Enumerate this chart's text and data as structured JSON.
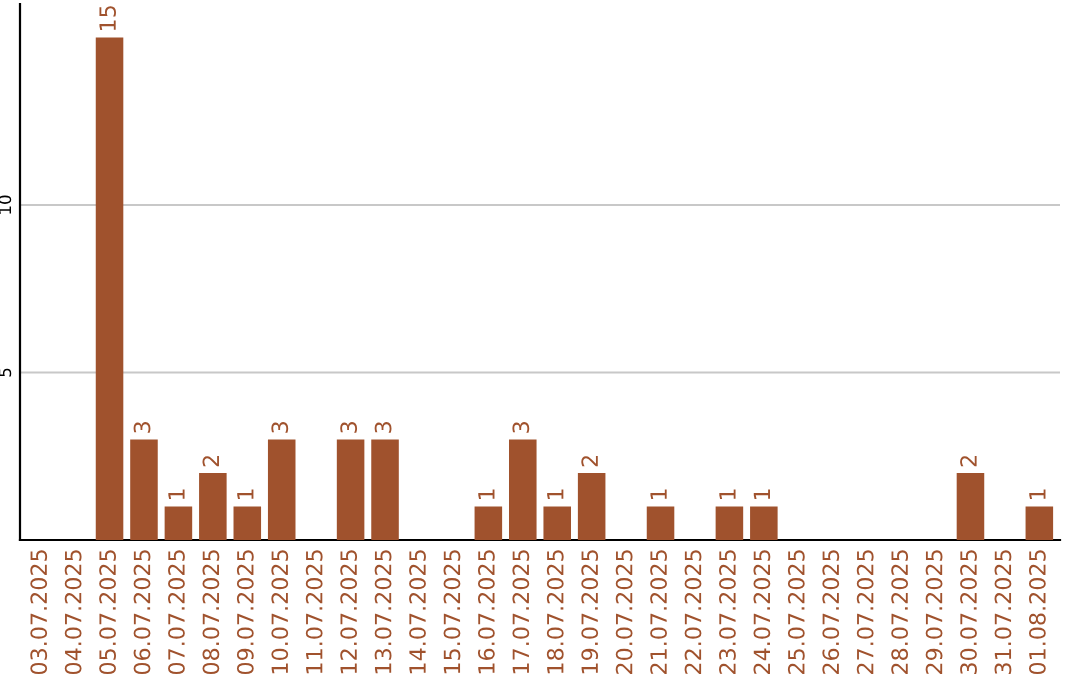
{
  "chart_data": {
    "type": "bar",
    "categories": [
      "03.07.2025",
      "04.07.2025",
      "05.07.2025",
      "06.07.2025",
      "07.07.2025",
      "08.07.2025",
      "09.07.2025",
      "10.07.2025",
      "11.07.2025",
      "12.07.2025",
      "13.07.2025",
      "14.07.2025",
      "15.07.2025",
      "16.07.2025",
      "17.07.2025",
      "18.07.2025",
      "19.07.2025",
      "20.07.2025",
      "21.07.2025",
      "22.07.2025",
      "23.07.2025",
      "24.07.2025",
      "25.07.2025",
      "26.07.2025",
      "27.07.2025",
      "28.07.2025",
      "29.07.2025",
      "30.07.2025",
      "31.07.2025",
      "01.08.2025"
    ],
    "values": [
      0,
      0,
      15,
      3,
      1,
      2,
      1,
      3,
      0,
      3,
      3,
      0,
      0,
      1,
      3,
      1,
      2,
      0,
      1,
      0,
      1,
      1,
      0,
      0,
      0,
      0,
      0,
      2,
      0,
      1
    ],
    "value_labels": [
      null,
      null,
      "15",
      "3",
      "1",
      "2",
      "1",
      "3",
      null,
      "3",
      "3",
      null,
      null,
      "1",
      "3",
      "1",
      "2",
      null,
      "1",
      null,
      "1",
      "1",
      null,
      null,
      null,
      null,
      null,
      "2",
      null,
      "1"
    ],
    "color": "#a0522d",
    "ylim": [
      0,
      16
    ],
    "yticks": [
      5,
      10
    ],
    "grid": "y"
  }
}
